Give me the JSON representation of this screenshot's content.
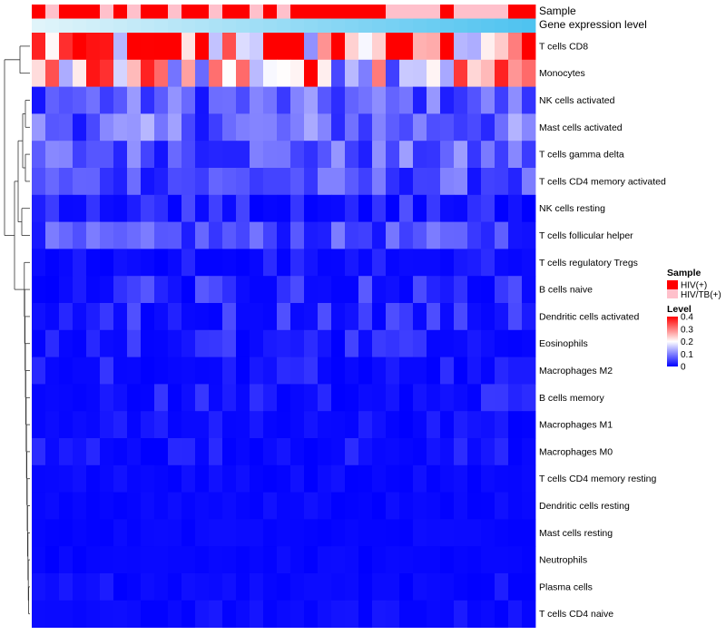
{
  "chart_data": {
    "type": "heatmap",
    "title": "",
    "annotation_labels": {
      "sample": "Sample",
      "gene_expression": "Gene expression level"
    },
    "rows": [
      "T cells CD8",
      "Monocytes",
      "NK cells activated",
      "Mast cells activated",
      "T cells gamma delta",
      "T cells CD4 memory activated",
      "NK cells resting",
      "T cells follicular helper",
      "T cells regulatory  Tregs",
      "B cells naive",
      "Dendritic cells activated",
      "Eosinophils",
      "Macrophages M2",
      "B cells memory",
      "Macrophages M1",
      "Macrophages M0",
      "T cells CD4 memory resting",
      "Dendritic cells resting",
      "Mast cells resting",
      "Neutrophils",
      "Plasma cells",
      "T cells CD4 naive"
    ],
    "row_means": [
      0.3,
      0.24,
      0.07,
      0.08,
      0.07,
      0.06,
      0.035,
      0.055,
      0.02,
      0.04,
      0.035,
      0.03,
      0.025,
      0.025,
      0.015,
      0.02,
      0.008,
      0.008,
      0.005,
      0.004,
      0.015,
      0.012
    ],
    "n_samples": 37,
    "sample_groups": [
      "HIV(+)",
      "HIV/TB(+)",
      "HIV(+)",
      "HIV(+)",
      "HIV(+)",
      "HIV/TB(+)",
      "HIV(+)",
      "HIV/TB(+)",
      "HIV(+)",
      "HIV(+)",
      "HIV/TB(+)",
      "HIV(+)",
      "HIV(+)",
      "HIV/TB(+)",
      "HIV(+)",
      "HIV(+)",
      "HIV/TB(+)",
      "HIV(+)",
      "HIV/TB(+)",
      "HIV(+)",
      "HIV(+)",
      "HIV(+)",
      "HIV(+)",
      "HIV(+)",
      "HIV(+)",
      "HIV(+)",
      "HIV/TB(+)",
      "HIV/TB(+)",
      "HIV/TB(+)",
      "HIV/TB(+)",
      "HIV(+)",
      "HIV/TB(+)",
      "HIV/TB(+)",
      "HIV/TB(+)",
      "HIV/TB(+)",
      "HIV(+)",
      "HIV(+)"
    ],
    "color_scale": {
      "min": 0,
      "max": 0.4,
      "low": "#0000ff",
      "mid": "#ffffff",
      "high": "#ff0000",
      "mid_value": 0.2
    },
    "legend": {
      "sample_title": "Sample",
      "sample_entries": [
        {
          "label": "HIV(+)",
          "color": "#ff0000"
        },
        {
          "label": "HIV/TB(+)",
          "color": "#ffc0cb"
        }
      ],
      "level_title": "Level",
      "level_ticks": [
        "0.4",
        "0.3",
        "0.2",
        "0.1",
        "0"
      ],
      "placement": "right"
    },
    "gene_expression_colors": {
      "low": "#e0f4fa",
      "high": "#4fc3f0"
    }
  }
}
